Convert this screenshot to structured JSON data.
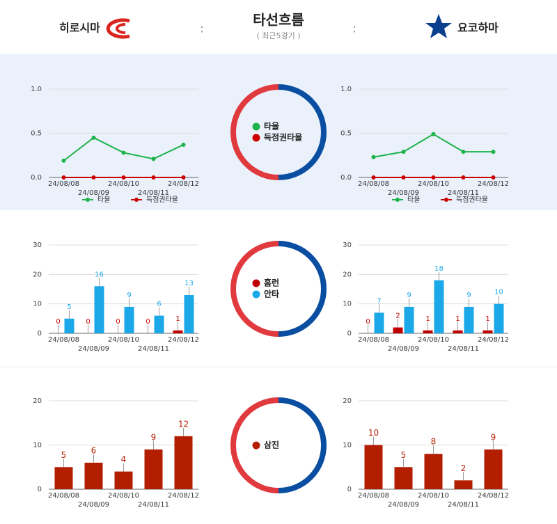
{
  "header": {
    "home": "히로시마",
    "title": "타선흐름",
    "subtitle": "( 최근5경기 )",
    "separators": [
      ":",
      ":"
    ],
    "away": "요코하마"
  },
  "chart_data": [
    {
      "type": "line",
      "categories": [
        "24/08/08",
        "24/08/09",
        "24/08/10",
        "24/08/11",
        "24/08/12"
      ],
      "series": [
        {
          "name": "타율",
          "color": "#1db34a",
          "values": [
            0.19,
            0.45,
            0.28,
            0.21,
            0.37
          ]
        },
        {
          "name": "득점권타율",
          "color": "#cc0000",
          "values": [
            0,
            0,
            0,
            0,
            0
          ]
        }
      ],
      "ylim": [
        0,
        1
      ],
      "yticks": [
        {
          "value": 0,
          "label": "0.0"
        },
        0.5,
        {
          "value": 1,
          "label": "1.0"
        }
      ],
      "grid": true,
      "legend": "bottom"
    },
    {
      "type": "line",
      "categories": [
        "24/08/08",
        "24/08/09",
        "24/08/10",
        "24/08/11",
        "24/08/12"
      ],
      "series": [
        {
          "name": "타율",
          "color": "#1db34a",
          "values": [
            0.23,
            0.29,
            0.49,
            0.29,
            0.29
          ]
        },
        {
          "name": "득점권타율",
          "color": "#cc0000",
          "values": [
            0,
            0,
            0,
            0,
            0
          ]
        }
      ],
      "ylim": [
        0,
        1
      ],
      "yticks": [
        {
          "value": 0,
          "label": "0.0"
        },
        0.5,
        {
          "value": 1,
          "label": "1.0"
        }
      ],
      "grid": true,
      "legend": "bottom"
    },
    {
      "type": "bar",
      "categories": [
        "24/08/08",
        "24/08/09",
        "24/08/10",
        "24/08/11",
        "24/08/12"
      ],
      "series": [
        {
          "name": "홈런",
          "color": "#c00000",
          "values": [
            0,
            0,
            0,
            0,
            1
          ]
        },
        {
          "name": "안타",
          "color": "#1aa8e8",
          "values": [
            5,
            16,
            9,
            6,
            13
          ]
        }
      ],
      "ylim": [
        0,
        30
      ],
      "yticks": [
        0,
        10,
        20,
        30
      ],
      "grid": true
    },
    {
      "type": "bar",
      "categories": [
        "24/08/08",
        "24/08/09",
        "24/08/10",
        "24/08/11",
        "24/08/12"
      ],
      "series": [
        {
          "name": "홈런",
          "color": "#c00000",
          "values": [
            0,
            2,
            1,
            1,
            1
          ]
        },
        {
          "name": "안타",
          "color": "#1aa8e8",
          "values": [
            7,
            9,
            18,
            9,
            10
          ]
        }
      ],
      "ylim": [
        0,
        30
      ],
      "yticks": [
        0,
        10,
        20,
        30
      ],
      "grid": true
    },
    {
      "type": "bar",
      "categories": [
        "24/08/08",
        "24/08/09",
        "24/08/10",
        "24/08/11",
        "24/08/12"
      ],
      "series": [
        {
          "name": "삼진",
          "color": "#b31e00",
          "values": [
            5,
            6,
            4,
            9,
            12
          ]
        }
      ],
      "ylim": [
        0,
        20
      ],
      "yticks": [
        0,
        10,
        20
      ],
      "grid": true
    },
    {
      "type": "bar",
      "categories": [
        "24/08/08",
        "24/08/09",
        "24/08/10",
        "24/08/11",
        "24/08/12"
      ],
      "series": [
        {
          "name": "삼진",
          "color": "#b31e00",
          "values": [
            10,
            5,
            8,
            2,
            9
          ]
        }
      ],
      "ylim": [
        0,
        20
      ],
      "yticks": [
        0,
        10,
        20
      ],
      "grid": true
    }
  ]
}
